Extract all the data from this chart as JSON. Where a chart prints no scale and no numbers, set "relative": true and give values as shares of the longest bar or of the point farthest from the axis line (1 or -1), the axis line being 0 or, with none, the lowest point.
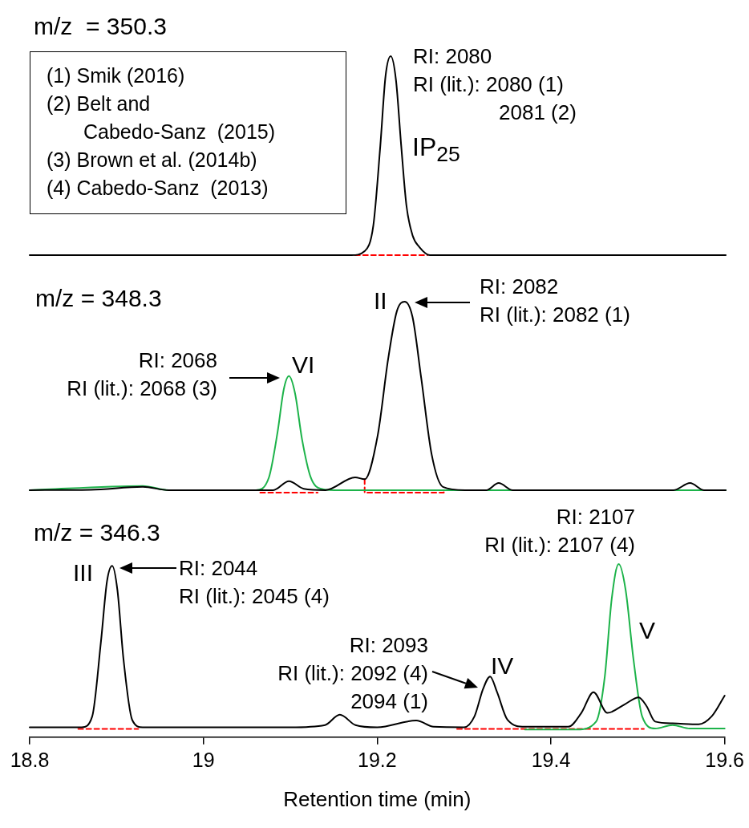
{
  "chart_data": [
    {
      "type": "line",
      "title": "m/z  = 350.3",
      "relative": true,
      "xlim": [
        18.8,
        19.6
      ],
      "xticks": [
        18.8,
        19,
        19.2,
        19.4,
        19.6
      ],
      "tick_labels": false,
      "series": [
        {
          "color": "#000000",
          "x": [
            18.8,
            19.0,
            19.17,
            19.185,
            19.195,
            19.203,
            19.209,
            19.215,
            19.221,
            19.227,
            19.233,
            19.24,
            19.248,
            19.26,
            19.6
          ],
          "values": [
            0.0,
            0.0,
            0.0,
            0.02,
            0.15,
            0.55,
            0.9,
            1.0,
            0.88,
            0.55,
            0.25,
            0.1,
            0.04,
            0.0,
            0.0
          ]
        },
        {
          "color": "#ff0000",
          "line_style": "dashed",
          "x": [
            19.174,
            19.257
          ],
          "values": [
            0.0,
            0.0
          ]
        }
      ],
      "annotations": [
        "(1) Smik (2016)",
        "(2) Belt and\nCabedo-Sanz  (2015)",
        "(3) Brown et al. (2014b)",
        "(4) Cabedo-Sanz  (2013)",
        "RI: 2080\nRI (lit.): 2080 (1)\n2081 (2)",
        "IP$_{25}$"
      ]
    },
    {
      "type": "line",
      "title": "m/z = 348.3",
      "relative": true,
      "xlim": [
        18.8,
        19.6
      ],
      "xticks": [
        18.8,
        19,
        19.2,
        19.4,
        19.6
      ],
      "tick_labels": false,
      "series": [
        {
          "color": "#000000",
          "x": [
            18.8,
            18.87,
            18.93,
            18.96,
            19.0,
            19.08,
            19.098,
            19.115,
            19.14,
            19.174,
            19.185,
            19.2,
            19.212,
            19.222,
            19.231,
            19.24,
            19.25,
            19.262,
            19.275,
            19.3,
            19.325,
            19.339,
            19.355,
            19.54,
            19.559,
            19.575,
            19.6
          ],
          "values": [
            0.013,
            0.015,
            0.03,
            0.013,
            0.013,
            0.013,
            0.06,
            0.02,
            0.013,
            0.08,
            0.07,
            0.3,
            0.7,
            0.95,
            1.0,
            0.92,
            0.6,
            0.2,
            0.03,
            0.013,
            0.013,
            0.05,
            0.013,
            0.013,
            0.05,
            0.013,
            0.013
          ]
        },
        {
          "color": "#1db34a",
          "x": [
            18.8,
            18.93,
            18.96,
            19.06,
            19.075,
            19.085,
            19.092,
            19.098,
            19.105,
            19.113,
            19.123,
            19.135,
            19.15,
            19.6
          ],
          "values": [
            0.013,
            0.035,
            0.013,
            0.013,
            0.08,
            0.32,
            0.54,
            0.61,
            0.52,
            0.28,
            0.08,
            0.02,
            0.013,
            0.013
          ]
        },
        {
          "color": "#ff0000",
          "line_style": "dashed",
          "x": [
            19.065,
            19.131
          ],
          "values": [
            0.0,
            0.0
          ]
        },
        {
          "color": "#ff0000",
          "line_style": "dashed",
          "x": [
            19.185,
            19.185,
            19.276,
            19.276
          ],
          "values": [
            0.07,
            0.0,
            0.0,
            0.01
          ]
        }
      ],
      "annotations": [
        "RI: 2082\nRI (lit.): 2082 (1)",
        "RI: 2068\nRI (lit.): 2068 (3)",
        "II",
        "VI"
      ]
    },
    {
      "type": "line",
      "title": "m/z = 346.3",
      "relative": true,
      "xlabel": "Retention time (min)",
      "xlim": [
        18.8,
        19.6
      ],
      "xticks": [
        18.8,
        19,
        19.2,
        19.4,
        19.6
      ],
      "tick_labels": "x",
      "series": [
        {
          "color": "#000000",
          "x": [
            18.8,
            18.86,
            18.872,
            18.882,
            18.889,
            18.895,
            18.901,
            18.908,
            18.918,
            18.93,
            19.1,
            19.14,
            19.157,
            19.175,
            19.2,
            19.245,
            19.265,
            19.3,
            19.312,
            19.322,
            19.33,
            19.338,
            19.35,
            19.37,
            19.42,
            19.435,
            19.449,
            19.465,
            19.485,
            19.501,
            19.51,
            19.52,
            19.54,
            19.57,
            19.585,
            19.6
          ],
          "values": [
            0.057,
            0.057,
            0.12,
            0.55,
            0.9,
            0.99,
            0.85,
            0.45,
            0.1,
            0.057,
            0.057,
            0.07,
            0.13,
            0.07,
            0.057,
            0.096,
            0.06,
            0.057,
            0.12,
            0.28,
            0.35,
            0.26,
            0.1,
            0.06,
            0.06,
            0.14,
            0.26,
            0.14,
            0.19,
            0.23,
            0.18,
            0.09,
            0.08,
            0.074,
            0.12,
            0.24
          ]
        },
        {
          "color": "#1db34a",
          "x": [
            19.37,
            19.43,
            19.452,
            19.462,
            19.47,
            19.478,
            19.486,
            19.495,
            19.505,
            19.52,
            19.54,
            19.56,
            19.6
          ],
          "values": [
            0.044,
            0.044,
            0.09,
            0.35,
            0.8,
            1.0,
            0.85,
            0.45,
            0.12,
            0.05,
            0.07,
            0.05,
            0.05
          ]
        },
        {
          "color": "#ff0000",
          "line_style": "dashed",
          "x": [
            18.856,
            18.925
          ],
          "values": [
            0.048,
            0.048
          ]
        },
        {
          "color": "#ff0000",
          "line_style": "dashed",
          "x": [
            19.292,
            19.507
          ],
          "values": [
            0.048,
            0.048
          ]
        }
      ],
      "annotations": [
        "RI: 2044\nRI (lit.): 2045 (4)",
        "RI: 2093\nRI (lit.): 2092 (4)\n2094 (1)",
        "RI: 2107\nRI (lit.): 2107 (4)",
        "III",
        "IV",
        "V"
      ]
    }
  ]
}
